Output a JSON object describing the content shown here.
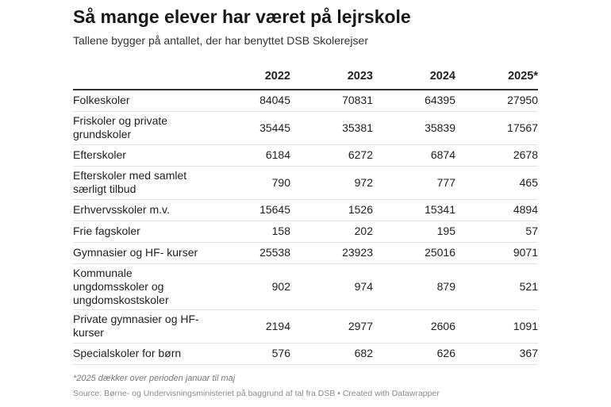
{
  "header": {
    "title": "Så mange elever har været på lejrskole",
    "subtitle": "Tallene bygger på antallet, der har benyttet DSB Skolerejser"
  },
  "chart_data": {
    "type": "table",
    "title": "Så mange elever har været på lejrskole",
    "subtitle": "Tallene bygger på antallet, der har benyttet DSB Skolerejser",
    "columns": [
      "",
      "2022",
      "2023",
      "2024",
      "2025*"
    ],
    "rows": [
      {
        "label": "Folkeskoler",
        "values": [
          "84045",
          "70831",
          "64395",
          "27950"
        ]
      },
      {
        "label": "Friskoler og private grundskoler",
        "values": [
          "35445",
          "35381",
          "35839",
          "17567"
        ]
      },
      {
        "label": "Efterskoler",
        "values": [
          "6184",
          "6272",
          "6874",
          "2678"
        ]
      },
      {
        "label": "Efterskoler med samlet særligt tilbud",
        "values": [
          "790",
          "972",
          "777",
          "465"
        ]
      },
      {
        "label": "Erhvervsskoler m.v.",
        "values": [
          "15645",
          "1526",
          "15341",
          "4894"
        ]
      },
      {
        "label": "Frie fagskoler",
        "values": [
          "158",
          "202",
          "195",
          "57"
        ]
      },
      {
        "label": "Gymnasier og HF- kurser",
        "values": [
          "25538",
          "23923",
          "25016",
          "9071"
        ]
      },
      {
        "label": "Kommunale ungdomsskoler og ungdomskostskoler",
        "values": [
          "902",
          "974",
          "879",
          "521"
        ]
      },
      {
        "label": "Private gymnasier og HF-kurser",
        "values": [
          "2194",
          "2977",
          "2606",
          "1091"
        ]
      },
      {
        "label": "Specialskoler for børn",
        "values": [
          "576",
          "682",
          "626",
          "367"
        ]
      }
    ]
  },
  "footer": {
    "note": "*2025 dækker over perioden januar til maj",
    "source": "Source: Børne- og Undervisningsministeriet på baggrund af tal fra DSB • Created with Datawrapper"
  }
}
